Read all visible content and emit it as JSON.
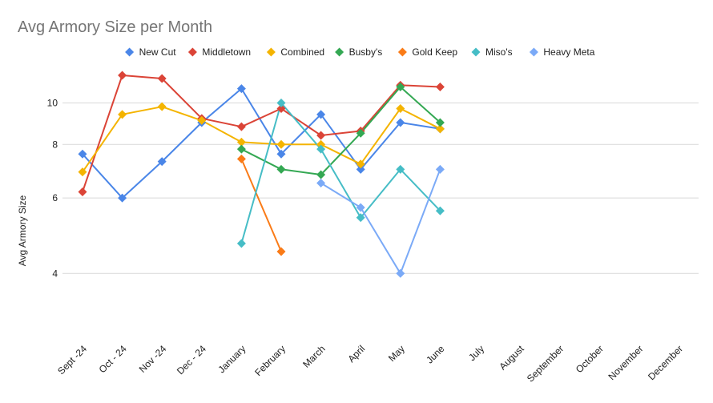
{
  "chart_data": {
    "type": "line",
    "title": "Avg Armory Size per Month",
    "xlabel": "",
    "ylabel": "Avg Armory Size",
    "categories": [
      "Sept -24",
      "Oct - 24",
      "Nov -24",
      "Dec - 24",
      "January",
      "February",
      "March",
      "April",
      "May",
      "June",
      "July",
      "August",
      "September",
      "October",
      "November",
      "December"
    ],
    "yticks": [
      4,
      6,
      8,
      10
    ],
    "ylim": [
      2.9,
      11.7
    ],
    "scale": "log",
    "legend_position": "top",
    "grid": true,
    "series": [
      {
        "name": "New Cut",
        "color": "#4a86e8",
        "values": [
          7.6,
          6.0,
          7.3,
          9.0,
          10.8,
          7.6,
          9.4,
          7.0,
          9.0,
          8.7,
          null,
          null,
          null,
          null,
          null,
          null
        ]
      },
      {
        "name": "Middletown",
        "color": "#db4437",
        "values": [
          6.2,
          11.6,
          11.4,
          9.2,
          8.8,
          9.7,
          8.4,
          8.6,
          11.0,
          10.9,
          null,
          null,
          null,
          null,
          null,
          null
        ]
      },
      {
        "name": "Combined",
        "color": "#f4b400",
        "values": [
          6.9,
          9.4,
          9.8,
          9.1,
          8.1,
          8.0,
          8.0,
          7.2,
          9.7,
          8.7,
          null,
          null,
          null,
          null,
          null,
          null
        ]
      },
      {
        "name": "Busby's",
        "color": "#34a853",
        "values": [
          null,
          null,
          null,
          null,
          7.8,
          7.0,
          6.8,
          8.5,
          10.9,
          9.0,
          null,
          null,
          null,
          null,
          null,
          null
        ]
      },
      {
        "name": "Gold Keep",
        "color": "#fa7b17",
        "values": [
          null,
          null,
          null,
          null,
          7.4,
          4.5,
          null,
          null,
          null,
          null,
          null,
          null,
          null,
          null,
          null,
          null
        ]
      },
      {
        "name": "Miso's",
        "color": "#46bdc6",
        "values": [
          null,
          null,
          null,
          null,
          4.7,
          10.0,
          7.8,
          5.4,
          7.0,
          5.6,
          null,
          null,
          null,
          null,
          null,
          null
        ]
      },
      {
        "name": "Heavy Meta",
        "color": "#7baaf7",
        "values": [
          null,
          null,
          null,
          null,
          null,
          null,
          6.5,
          5.7,
          4.0,
          7.0,
          null,
          null,
          null,
          null,
          null,
          null
        ]
      }
    ]
  }
}
